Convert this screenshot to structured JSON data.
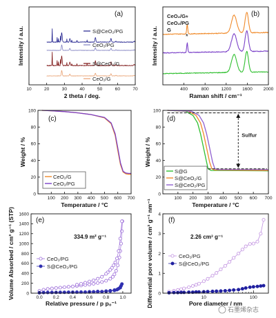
{
  "figure": {
    "watermark": "石墨烯杂志"
  },
  "chart_data": [
    {
      "id": "a",
      "panel_label": "(a)",
      "type": "line",
      "xlabel": "2 theta / deg.",
      "ylabel": "Intensity / a.u.",
      "xlim": [
        10,
        70
      ],
      "xticks": [
        10,
        20,
        30,
        40,
        50,
        60,
        70
      ],
      "series": [
        {
          "name": "S@CeO₂/PG",
          "color": "#1e1e8c"
        },
        {
          "name": "CeO₂/PG",
          "color": "#8080c0"
        },
        {
          "name": "S@CeO₂/G",
          "color": "#7a1010"
        },
        {
          "name": "CeO₂/G",
          "color": "#e8a070"
        }
      ]
    },
    {
      "id": "b",
      "panel_label": "(b)",
      "type": "line",
      "xlabel": "Raman shift / cm⁻¹",
      "ylabel": "Intensity / a.u.",
      "xlim": [
        0,
        2000
      ],
      "xticks": [
        400,
        800,
        1200,
        1600,
        2000
      ],
      "annotations": [
        "*",
        "*"
      ],
      "series": [
        {
          "name": "CeO₂/G",
          "color": "#f08a2a"
        },
        {
          "name": "CeO₂/PG",
          "color": "#7a40c8"
        },
        {
          "name": "G",
          "color": "#2fbf2f"
        }
      ]
    },
    {
      "id": "c",
      "panel_label": "(c)",
      "type": "line",
      "xlabel": "Temperature / °C",
      "ylabel": "Weight / %",
      "xlim": [
        0,
        700
      ],
      "ylim": [
        0,
        100
      ],
      "xticks": [
        100,
        200,
        300,
        400,
        500,
        600,
        700
      ],
      "yticks": [
        0,
        20,
        40,
        60,
        80,
        100
      ],
      "series": [
        {
          "name": "CeO₂/G",
          "color": "#f08a2a",
          "x": [
            30,
            100,
            200,
            300,
            400,
            500,
            550,
            580,
            600,
            620,
            640,
            660,
            680,
            700
          ],
          "y": [
            100,
            99.5,
            98.5,
            97,
            95,
            91,
            84,
            70,
            52,
            35,
            26,
            24,
            23.5,
            23.5
          ]
        },
        {
          "name": "CeO₂/PG",
          "color": "#7a40c8",
          "x": [
            30,
            100,
            200,
            300,
            400,
            500,
            550,
            580,
            600,
            620,
            640,
            660,
            680,
            700
          ],
          "y": [
            100,
            99.5,
            98.5,
            97,
            95,
            91.5,
            85,
            72,
            55,
            37,
            27,
            25,
            24.5,
            24.5
          ]
        }
      ]
    },
    {
      "id": "d",
      "panel_label": "(d)",
      "type": "line",
      "xlabel": "Temperature / °C",
      "ylabel": "Weight / %",
      "xlim": [
        0,
        700
      ],
      "ylim": [
        0,
        100
      ],
      "xticks": [
        100,
        200,
        300,
        400,
        500,
        600,
        700
      ],
      "yticks": [
        0,
        20,
        40,
        60,
        80,
        100
      ],
      "annotation": "Sulfur",
      "series": [
        {
          "name": "S@G",
          "color": "#2fbf2f",
          "x": [
            30,
            150,
            200,
            230,
            250,
            270,
            290,
            300,
            320,
            700
          ],
          "y": [
            100,
            99,
            94,
            85,
            72,
            55,
            38,
            30,
            28,
            27.5
          ]
        },
        {
          "name": "S@CeO₂/G",
          "color": "#f08a2a",
          "x": [
            30,
            170,
            220,
            250,
            270,
            290,
            310,
            325,
            345,
            700
          ],
          "y": [
            100,
            99,
            94,
            85,
            72,
            55,
            38,
            30,
            28.5,
            28
          ]
        },
        {
          "name": "S@CeO₂/PG",
          "color": "#9060d0",
          "x": [
            30,
            190,
            240,
            270,
            290,
            310,
            330,
            345,
            365,
            700
          ],
          "y": [
            100,
            99,
            94,
            85,
            72,
            55,
            38,
            30,
            29,
            29
          ]
        }
      ]
    },
    {
      "id": "e",
      "panel_label": "(e)",
      "type": "scatter",
      "xlabel": "Relative pressure / p p₀⁻¹",
      "ylabel": "Volume Absorbed / cm³ g⁻¹ (STP)",
      "xlim": [
        -0.1,
        1.1
      ],
      "ylim": [
        0,
        1600
      ],
      "xticks": [
        0.0,
        0.2,
        0.4,
        0.6,
        0.8,
        1.0
      ],
      "yticks": [
        0,
        200,
        400,
        600,
        800,
        1000,
        1200,
        1400,
        1600
      ],
      "annotation": "334.9 m² g⁻¹",
      "series": [
        {
          "name": "CeO₂/PG",
          "color": "#9a6ad8",
          "marker": "open-circle",
          "adsorption": {
            "x": [
              0.0,
              0.05,
              0.1,
              0.15,
              0.2,
              0.25,
              0.3,
              0.35,
              0.4,
              0.45,
              0.5,
              0.55,
              0.6,
              0.65,
              0.7,
              0.75,
              0.8,
              0.85,
              0.88,
              0.9,
              0.92,
              0.94,
              0.96,
              0.97,
              0.98,
              0.99,
              0.995
            ],
            "y": [
              45,
              70,
              85,
              95,
              105,
              112,
              120,
              128,
              135,
              145,
              155,
              165,
              175,
              190,
              205,
              225,
              250,
              290,
              330,
              380,
              450,
              560,
              720,
              850,
              1000,
              1250,
              1450
            ]
          },
          "desorption": {
            "x": [
              0.99,
              0.97,
              0.95,
              0.93,
              0.91,
              0.89,
              0.87,
              0.85,
              0.82,
              0.8,
              0.75,
              0.7,
              0.65,
              0.6,
              0.55,
              0.5,
              0.45
            ],
            "y": [
              1450,
              1100,
              850,
              700,
              620,
              560,
              510,
              470,
              420,
              390,
              330,
              290,
              260,
              235,
              210,
              190,
              170
            ]
          }
        },
        {
          "name": "S@CeO₂/PG",
          "color": "#3030b0",
          "marker": "filled-circle",
          "adsorption": {
            "x": [
              0.0,
              0.05,
              0.1,
              0.15,
              0.2,
              0.25,
              0.3,
              0.35,
              0.4,
              0.45,
              0.5,
              0.55,
              0.6,
              0.65,
              0.7,
              0.75,
              0.8,
              0.85,
              0.9,
              0.93,
              0.95,
              0.97,
              0.98,
              0.99
            ],
            "y": [
              8,
              12,
              14,
              15,
              16,
              17,
              18,
              19,
              20,
              21,
              22,
              23,
              25,
              27,
              29,
              32,
              36,
              42,
              55,
              70,
              90,
              120,
              150,
              185
            ]
          },
          "desorption": {
            "x": [
              0.97,
              0.94,
              0.9,
              0.85,
              0.8,
              0.7,
              0.6
            ],
            "y": [
              110,
              80,
              62,
              50,
              42,
              34,
              28
            ]
          }
        }
      ]
    },
    {
      "id": "f",
      "panel_label": "(f)",
      "type": "line",
      "xlabel": "Pore diameter / nm",
      "ylabel": "Differential pore volume / cm³ g⁻¹ nm⁻¹",
      "xscale": "log",
      "xlim": [
        1.5,
        200
      ],
      "ylim": [
        0,
        4
      ],
      "xticks": [
        10,
        100
      ],
      "yticks": [
        0,
        1,
        2,
        3,
        4
      ],
      "annotation": "2.26 cm³ g⁻¹",
      "series": [
        {
          "name": "CeO₂/PG",
          "color": "#c090e0",
          "marker": "open-circle",
          "x": [
            2,
            2.5,
            3,
            3.5,
            4,
            5,
            6,
            7,
            8,
            10,
            12,
            15,
            18,
            22,
            27,
            33,
            40,
            50,
            60,
            70,
            85,
            100,
            120,
            140,
            160
          ],
          "y": [
            0.08,
            0.12,
            0.16,
            0.2,
            0.24,
            0.3,
            0.36,
            0.42,
            0.48,
            0.6,
            0.72,
            0.88,
            1.02,
            1.2,
            1.38,
            1.58,
            1.78,
            2.0,
            2.2,
            2.36,
            2.48,
            2.5,
            2.6,
            3.0,
            3.7
          ]
        },
        {
          "name": "S@CeO₂/PG",
          "color": "#2020a0",
          "marker": "filled-circle",
          "x": [
            2,
            2.5,
            3,
            3.5,
            4,
            5,
            6,
            7,
            8,
            10,
            12,
            15,
            18,
            22,
            27,
            33,
            40,
            50,
            60,
            70,
            85,
            100,
            120,
            140,
            160
          ],
          "y": [
            0.02,
            0.03,
            0.03,
            0.04,
            0.04,
            0.05,
            0.05,
            0.06,
            0.06,
            0.07,
            0.08,
            0.09,
            0.1,
            0.11,
            0.12,
            0.14,
            0.16,
            0.18,
            0.22,
            0.26,
            0.3,
            0.32,
            0.34,
            0.36,
            0.38
          ]
        }
      ]
    }
  ]
}
